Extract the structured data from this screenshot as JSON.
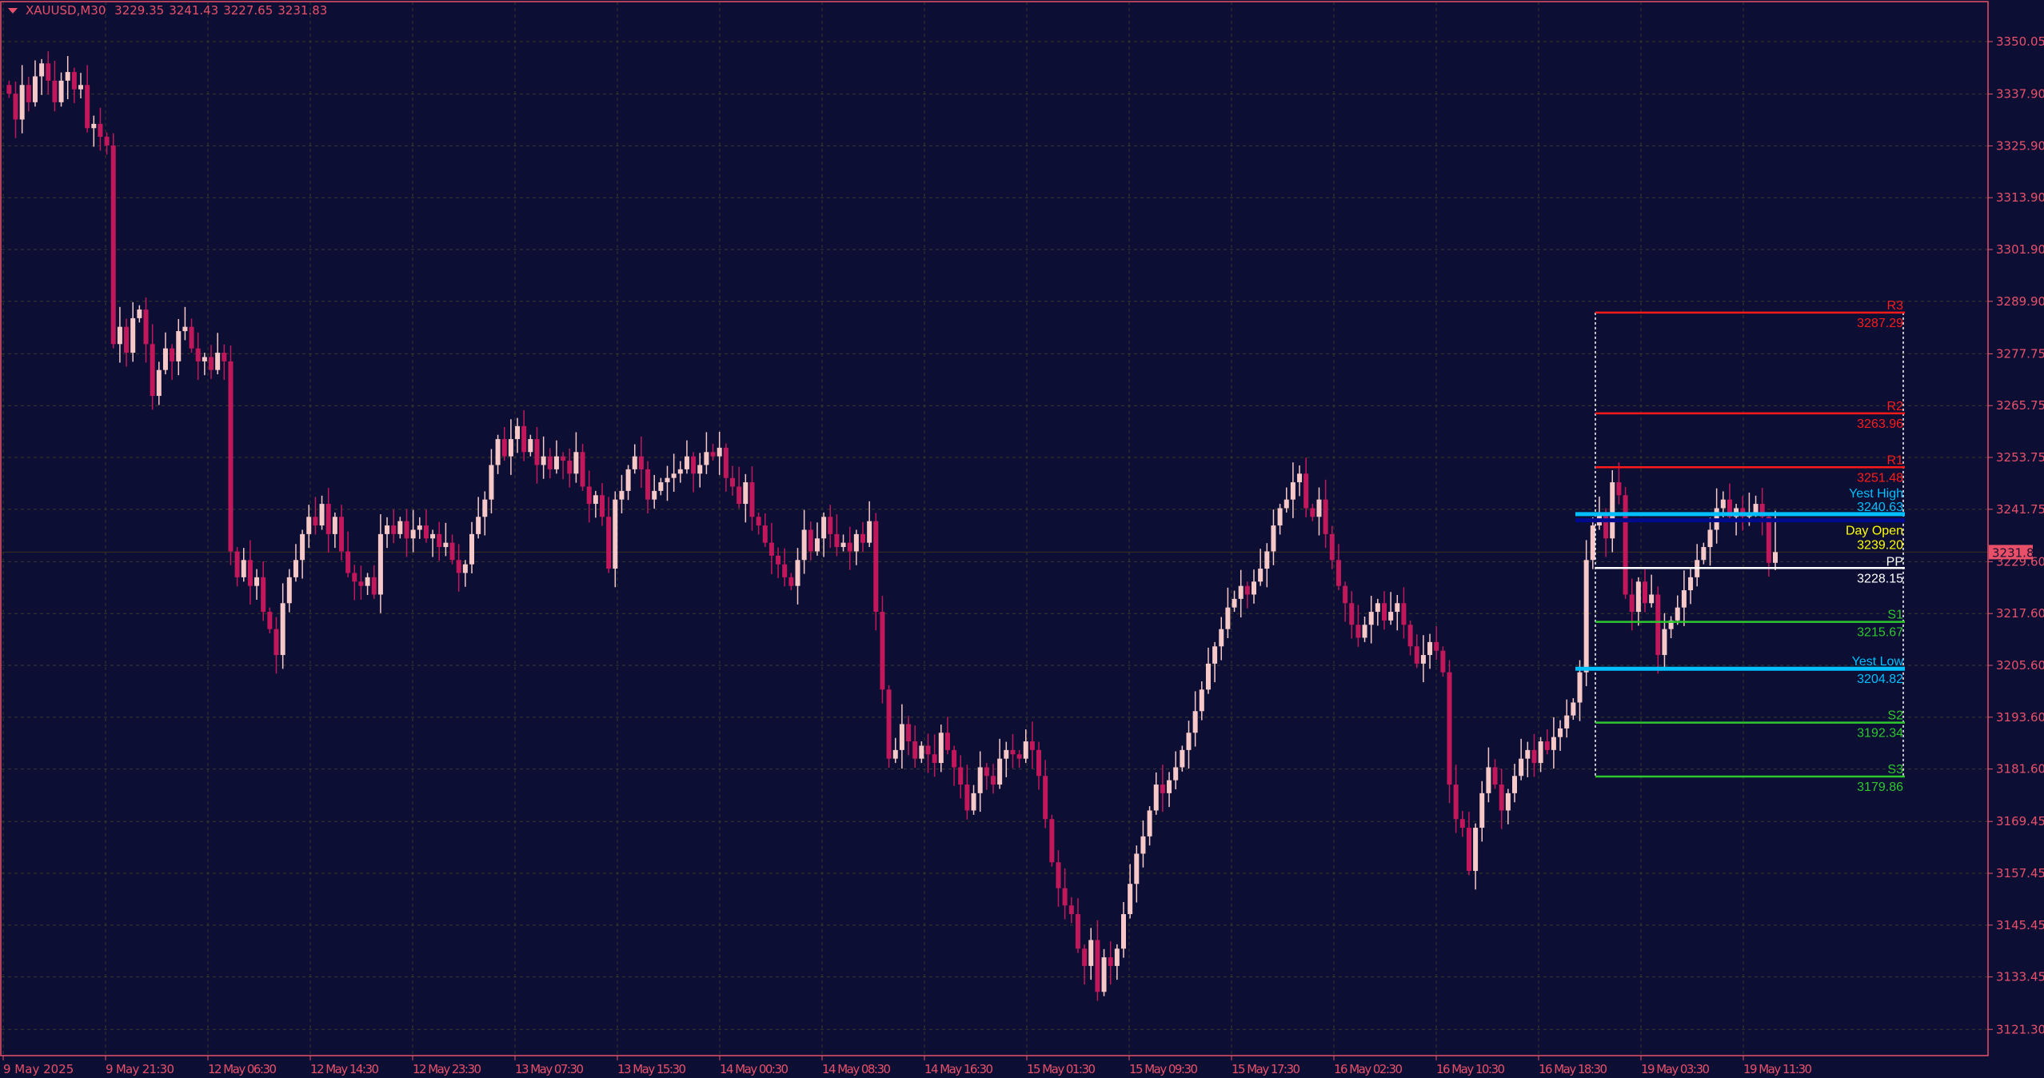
{
  "header": {
    "symbol": "XAUUSD,M30",
    "open": "3229.35",
    "high": "3241.43",
    "low": "3227.65",
    "close": "3231.83"
  },
  "colors": {
    "background": "#0c0f33",
    "bull_candle": "#f7c8c8",
    "bear_candle": "#c2185b",
    "axis": "#e8506a",
    "grid": "#3a3a2a",
    "resistance": "#ff1a1a",
    "support": "#2ec72e",
    "pivot": "#ffffff",
    "yest_high_low": "#00bfff",
    "day_open_line": "#000a8c",
    "day_open_text": "#ffff00",
    "price_box": "#e8506a"
  },
  "chart_data": {
    "type": "candlestick",
    "title": "XAUUSD,M30",
    "timeframe": "M30",
    "ylim": [
      3115,
      3356
    ],
    "grid": true,
    "y_ticks": [
      "3350.05",
      "3337.90",
      "3325.90",
      "3313.90",
      "3301.90",
      "3289.90",
      "3277.75",
      "3265.75",
      "3253.75",
      "3241.75",
      "3229.60",
      "3217.60",
      "3205.60",
      "3193.60",
      "3181.60",
      "3169.45",
      "3157.45",
      "3145.45",
      "3133.45",
      "3121.30"
    ],
    "x_ticks": [
      "9 May 2025",
      "9 May 21:30",
      "12 May 06:30",
      "12 May 14:30",
      "12 May 23:30",
      "13 May 07:30",
      "13 May 15:30",
      "14 May 00:30",
      "14 May 08:30",
      "14 May 16:30",
      "15 May 01:30",
      "15 May 09:30",
      "15 May 17:30",
      "16 May 02:30",
      "16 May 10:30",
      "16 May 18:30",
      "19 May 03:30",
      "19 May 11:30"
    ],
    "current_price": "3231.83",
    "last_open": 3229.35,
    "last_high": 3241.43,
    "last_low": 3227.65,
    "closes": [
      3338,
      3332,
      3340,
      3336,
      3342,
      3345,
      3341,
      3336,
      3341,
      3343,
      3339,
      3340,
      3330,
      3331,
      3328,
      3326,
      3280,
      3284,
      3278,
      3286,
      3288,
      3280,
      3268,
      3274,
      3279,
      3276,
      3283,
      3284,
      3279,
      3276,
      3277,
      3274,
      3278,
      3276,
      3232,
      3226,
      3230,
      3224,
      3226,
      3218,
      3214,
      3208,
      3220,
      3226,
      3230,
      3236,
      3240,
      3238,
      3243,
      3236,
      3240,
      3232,
      3227,
      3225,
      3224,
      3226,
      3222,
      3236,
      3238,
      3236,
      3239,
      3235,
      3237,
      3238,
      3235,
      3236,
      3233,
      3234,
      3230,
      3227,
      3229,
      3236,
      3240,
      3244,
      3252,
      3258,
      3254,
      3258,
      3261,
      3255,
      3258,
      3252,
      3254,
      3251,
      3254,
      3253,
      3250,
      3255,
      3247,
      3243,
      3245,
      3240,
      3228,
      3244,
      3246,
      3251,
      3254,
      3251,
      3244,
      3246,
      3248,
      3249,
      3250,
      3251,
      3254,
      3250,
      3252,
      3255,
      3254,
      3256,
      3249,
      3247,
      3243,
      3248,
      3240,
      3238,
      3234,
      3231,
      3229,
      3226,
      3224,
      3230,
      3237,
      3232,
      3235,
      3240,
      3236,
      3233,
      3234,
      3232,
      3236,
      3234,
      3239,
      3218,
      3200,
      3184,
      3186,
      3192,
      3188,
      3184,
      3187,
      3185,
      3183,
      3190,
      3186,
      3182,
      3178,
      3172,
      3176,
      3182,
      3180,
      3178,
      3184,
      3186,
      3185,
      3184,
      3188,
      3186,
      3180,
      3170,
      3160,
      3154,
      3150,
      3148,
      3140,
      3136,
      3142,
      3130,
      3138,
      3136,
      3140,
      3148,
      3155,
      3162,
      3166,
      3172,
      3178,
      3176,
      3179,
      3182,
      3186,
      3190,
      3195,
      3200,
      3206,
      3210,
      3214,
      3219,
      3221,
      3224,
      3222,
      3225,
      3228,
      3232,
      3238,
      3242,
      3244,
      3248,
      3250,
      3242,
      3240,
      3244,
      3236,
      3230,
      3224,
      3220,
      3215,
      3212,
      3215,
      3218,
      3220,
      3216,
      3218,
      3220,
      3215,
      3210,
      3206,
      3208,
      3211,
      3209,
      3204,
      3178,
      3170,
      3168,
      3158,
      3168,
      3176,
      3182,
      3178,
      3172,
      3176,
      3180,
      3184,
      3186,
      3183,
      3188,
      3186,
      3189,
      3191,
      3194,
      3197,
      3204,
      3230,
      3238,
      3241,
      3235,
      3248,
      3245,
      3222,
      3218,
      3225,
      3220,
      3222,
      3208,
      3214,
      3216,
      3219,
      3223,
      3226,
      3230,
      3233,
      3237,
      3242,
      3244,
      3240,
      3242,
      3240,
      3241,
      3243,
      3240,
      3229.35,
      3231.83
    ],
    "levels": [
      {
        "name": "R3",
        "value": "3287.29",
        "kind": "resistance"
      },
      {
        "name": "R2",
        "value": "3263.96",
        "kind": "resistance"
      },
      {
        "name": "R1",
        "value": "3251.48",
        "kind": "resistance"
      },
      {
        "name": "Yest High",
        "value": "3240.63",
        "kind": "yest"
      },
      {
        "name": "Day Open",
        "value": "3239.20",
        "kind": "dayopen"
      },
      {
        "name": "PP",
        "value": "3228.15",
        "kind": "pivot"
      },
      {
        "name": "S1",
        "value": "3215.67",
        "kind": "support"
      },
      {
        "name": "Yest Low",
        "value": "3204.82",
        "kind": "yest"
      },
      {
        "name": "S2",
        "value": "3192.34",
        "kind": "support"
      },
      {
        "name": "S3",
        "value": "3179.86",
        "kind": "support"
      }
    ]
  }
}
